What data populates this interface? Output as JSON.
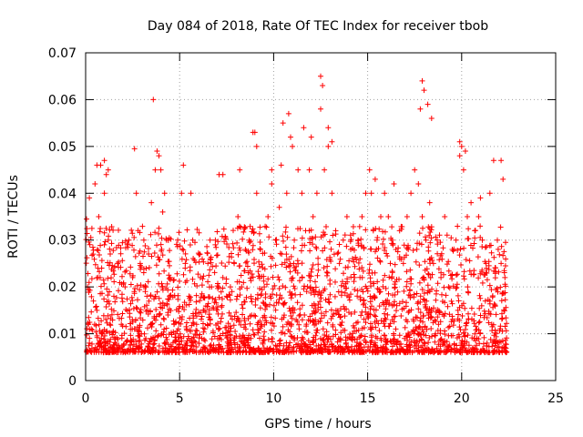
{
  "chart_data": {
    "type": "scatter",
    "title": "Day 084 of 2018, Rate Of TEC Index for receiver tbob",
    "xlabel": "GPS time / hours",
    "ylabel": "ROTI / TECUs",
    "xlim": [
      0,
      25
    ],
    "ylim": [
      0,
      0.07
    ],
    "x_ticks": [
      0,
      5,
      10,
      15,
      20,
      25
    ],
    "x_tick_labels": [
      "0",
      "5",
      "10",
      "15",
      "20",
      "25"
    ],
    "y_ticks": [
      0,
      0.01,
      0.02,
      0.03,
      0.04,
      0.05,
      0.06,
      0.07
    ],
    "y_tick_labels": [
      "0",
      "0.01",
      "0.02",
      "0.03",
      "0.04",
      "0.05",
      "0.06",
      "0.07"
    ],
    "grid": true,
    "marker": "+",
    "color": "#ff0000",
    "series": [
      {
        "x": [
          0.05,
          0.1,
          0.15,
          0.2,
          0.3,
          0.4,
          0.5,
          0.6,
          0.7,
          0.8,
          0.9,
          1.0,
          1.1,
          1.2,
          1.3,
          1.5,
          1.7,
          1.9,
          2.1,
          2.3,
          2.5,
          2.7,
          2.9,
          3.1,
          3.3,
          3.5,
          3.7,
          3.9,
          4.1,
          4.3,
          4.5,
          4.7,
          4.9,
          5.1,
          5.3,
          5.5,
          5.7,
          5.9,
          6.1,
          6.3,
          6.5,
          6.7,
          6.9,
          7.1,
          7.3,
          7.5,
          7.7,
          7.9,
          8.1,
          8.3,
          8.5,
          8.7,
          8.9,
          9.1,
          9.3,
          9.5,
          9.7,
          9.9,
          10.1,
          10.3,
          10.5,
          10.7,
          10.9,
          11.1,
          11.3,
          11.5,
          11.7,
          11.9,
          12.1,
          12.3,
          12.5,
          12.7,
          12.9,
          13.1,
          13.3,
          13.5,
          13.7,
          13.9,
          14.1,
          14.3,
          14.5,
          14.7,
          14.9,
          15.1,
          15.3,
          15.5,
          15.7,
          15.9,
          16.1,
          16.3,
          16.5,
          16.7,
          16.9,
          17.1,
          17.3,
          17.5,
          17.7,
          17.9,
          18.1,
          18.3,
          18.5,
          18.7,
          18.9,
          19.1,
          19.3,
          19.5,
          19.7,
          19.9,
          20.1,
          20.3,
          20.5,
          20.7,
          20.9,
          21.1,
          21.3,
          21.5,
          21.7,
          21.9,
          22.1,
          22.3,
          0.2,
          0.6,
          1.0,
          1.2,
          2.6,
          3.6,
          3.8,
          4.0,
          4.2,
          5.2,
          5.6,
          7.3,
          8.2,
          9.0,
          9.1,
          9.9,
          10.4,
          10.8,
          11.0,
          11.6,
          12.0,
          12.5,
          12.6,
          12.9,
          13.1,
          15.2,
          15.4,
          16.4,
          17.8,
          17.9,
          18.0,
          18.2,
          18.4,
          19.9,
          20.0,
          20.2,
          21.0,
          22.1,
          22.2
        ],
        "y": [
          0.0345,
          0.02,
          0.012,
          0.008,
          0.011,
          0.027,
          0.042,
          0.015,
          0.035,
          0.046,
          0.01,
          0.047,
          0.044,
          0.03,
          0.012,
          0.018,
          0.025,
          0.012,
          0.02,
          0.03,
          0.022,
          0.04,
          0.025,
          0.02,
          0.015,
          0.038,
          0.045,
          0.048,
          0.036,
          0.03,
          0.022,
          0.012,
          0.03,
          0.04,
          0.025,
          0.018,
          0.03,
          0.012,
          0.022,
          0.015,
          0.025,
          0.02,
          0.03,
          0.044,
          0.022,
          0.018,
          0.02,
          0.025,
          0.035,
          0.02,
          0.028,
          0.03,
          0.053,
          0.04,
          0.028,
          0.02,
          0.035,
          0.042,
          0.03,
          0.037,
          0.055,
          0.04,
          0.052,
          0.03,
          0.045,
          0.04,
          0.032,
          0.045,
          0.035,
          0.04,
          0.058,
          0.045,
          0.05,
          0.04,
          0.032,
          0.025,
          0.03,
          0.035,
          0.028,
          0.022,
          0.03,
          0.035,
          0.04,
          0.045,
          0.032,
          0.03,
          0.035,
          0.04,
          0.035,
          0.03,
          0.028,
          0.032,
          0.025,
          0.035,
          0.04,
          0.045,
          0.042,
          0.035,
          0.03,
          0.038,
          0.025,
          0.03,
          0.022,
          0.035,
          0.02,
          0.028,
          0.03,
          0.048,
          0.045,
          0.035,
          0.038,
          0.032,
          0.035,
          0.03,
          0.025,
          0.04,
          0.047,
          0.03,
          0.025,
          0.022,
          0.039,
          0.046,
          0.04,
          0.045,
          0.0495,
          0.06,
          0.049,
          0.045,
          0.04,
          0.046,
          0.04,
          0.044,
          0.045,
          0.053,
          0.05,
          0.045,
          0.046,
          0.057,
          0.05,
          0.054,
          0.052,
          0.065,
          0.063,
          0.054,
          0.051,
          0.04,
          0.043,
          0.042,
          0.058,
          0.064,
          0.062,
          0.059,
          0.056,
          0.051,
          0.05,
          0.049,
          0.039,
          0.047,
          0.043
        ]
      }
    ],
    "band": {
      "x_start": 0.0,
      "x_end": 22.4,
      "y_min": 0.003,
      "y_max_typical": 0.03
    }
  }
}
